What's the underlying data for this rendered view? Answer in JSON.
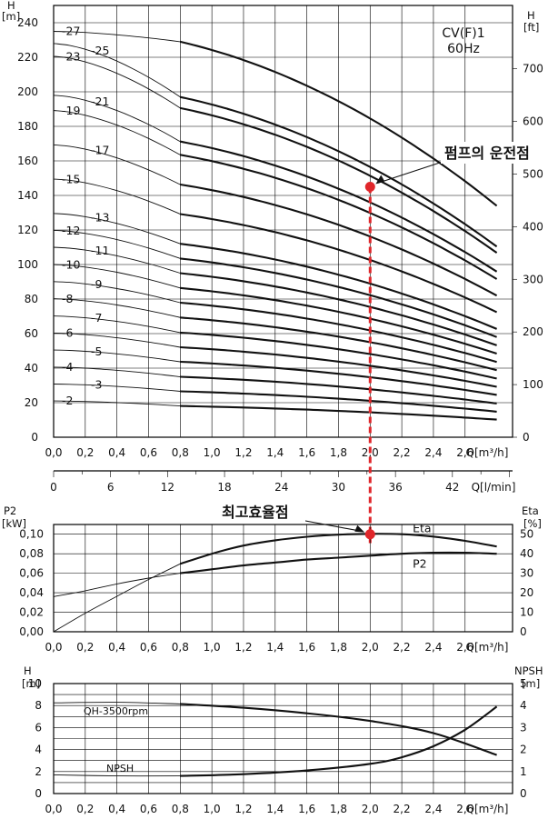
{
  "chart_data": [
    {
      "type": "line",
      "name": "head-curves",
      "title": "CV(F)1",
      "subtitle": "60Hz",
      "xlabel": "Q[m³/h]",
      "x2label": "Q[l/min]",
      "ylabel_left": "H",
      "ylabel_left_unit": "[m]",
      "ylabel_right": "H",
      "ylabel_right_unit": "[ft]",
      "xlim": [
        0,
        2.9
      ],
      "ylim": [
        0,
        250
      ],
      "x_ticks": [
        "0,0",
        "0,2",
        "0,4",
        "0,6",
        "0,8",
        "1,0",
        "1,2",
        "1,4",
        "1,6",
        "1,8",
        "2,0",
        "2,2",
        "2,4",
        "2,6"
      ],
      "x2_ticks": [
        "0",
        "6",
        "12",
        "18",
        "24",
        "30",
        "36",
        "42"
      ],
      "y_left_ticks": [
        "0",
        "20",
        "40",
        "60",
        "80",
        "100",
        "120",
        "140",
        "160",
        "180",
        "200",
        "220",
        "240"
      ],
      "y_right_ticks": [
        "0",
        "100",
        "200",
        "300",
        "400",
        "500",
        "600",
        "700"
      ],
      "series": [
        {
          "name": "-2",
          "values": [
            {
              "x": 0,
              "y": 21.0
            },
            {
              "x": 0.8,
              "y": 18.1
            },
            {
              "x": 2.8,
              "y": 10.2
            }
          ]
        },
        {
          "name": "-3",
          "values": [
            {
              "x": 0,
              "y": 30.8
            },
            {
              "x": 0.8,
              "y": 26.6
            },
            {
              "x": 2.8,
              "y": 14.8
            }
          ]
        },
        {
          "name": "-4",
          "values": [
            {
              "x": 0,
              "y": 40.6
            },
            {
              "x": 0.8,
              "y": 35.0
            },
            {
              "x": 2.8,
              "y": 19.5
            }
          ]
        },
        {
          "name": "-5",
          "values": [
            {
              "x": 0,
              "y": 50.5
            },
            {
              "x": 0.8,
              "y": 43.7
            },
            {
              "x": 2.8,
              "y": 24.5
            }
          ]
        },
        {
          "name": "-6",
          "values": [
            {
              "x": 0,
              "y": 60.3
            },
            {
              "x": 0.8,
              "y": 52.1
            },
            {
              "x": 2.8,
              "y": 29.2
            }
          ]
        },
        {
          "name": "-7",
          "values": [
            {
              "x": 0,
              "y": 70.2
            },
            {
              "x": 0.8,
              "y": 60.6
            },
            {
              "x": 2.8,
              "y": 34.0
            }
          ]
        },
        {
          "name": "-8",
          "values": [
            {
              "x": 0,
              "y": 80.2
            },
            {
              "x": 0.8,
              "y": 69.3
            },
            {
              "x": 2.8,
              "y": 38.8
            }
          ]
        },
        {
          "name": "-9",
          "values": [
            {
              "x": 0,
              "y": 90.1
            },
            {
              "x": 0.8,
              "y": 77.9
            },
            {
              "x": 2.8,
              "y": 43.6
            }
          ]
        },
        {
          "name": "-10",
          "values": [
            {
              "x": 0,
              "y": 100.0
            },
            {
              "x": 0.8,
              "y": 86.4
            },
            {
              "x": 2.8,
              "y": 48.4
            }
          ]
        },
        {
          "name": "-11",
          "values": [
            {
              "x": 0,
              "y": 110.0
            },
            {
              "x": 0.8,
              "y": 95.0
            },
            {
              "x": 2.8,
              "y": 53.2
            }
          ]
        },
        {
          "name": "-12",
          "values": [
            {
              "x": 0,
              "y": 119.8
            },
            {
              "x": 0.8,
              "y": 103.5
            },
            {
              "x": 2.8,
              "y": 58.0
            }
          ]
        },
        {
          "name": "-13",
          "values": [
            {
              "x": 0,
              "y": 129.6
            },
            {
              "x": 0.8,
              "y": 112.0
            },
            {
              "x": 2.8,
              "y": 62.7
            }
          ]
        },
        {
          "name": "-15",
          "values": [
            {
              "x": 0,
              "y": 149.5
            },
            {
              "x": 0.8,
              "y": 129.2
            },
            {
              "x": 2.8,
              "y": 72.4
            }
          ]
        },
        {
          "name": "-17",
          "values": [
            {
              "x": 0,
              "y": 169.3
            },
            {
              "x": 0.8,
              "y": 146.3
            },
            {
              "x": 2.8,
              "y": 82.0
            }
          ]
        },
        {
          "name": "-19",
          "values": [
            {
              "x": 0,
              "y": 189.2
            },
            {
              "x": 0.8,
              "y": 163.5
            },
            {
              "x": 2.8,
              "y": 91.6
            }
          ]
        },
        {
          "name": "-21",
          "values": [
            {
              "x": 0,
              "y": 198.0
            },
            {
              "x": 0.8,
              "y": 171.2
            },
            {
              "x": 2.8,
              "y": 95.9
            }
          ]
        },
        {
          "name": "-23",
          "values": [
            {
              "x": 0,
              "y": 220.6
            },
            {
              "x": 0.8,
              "y": 190.6
            },
            {
              "x": 2.8,
              "y": 106.8
            }
          ]
        },
        {
          "name": "-25",
          "values": [
            {
              "x": 0,
              "y": 228.0
            },
            {
              "x": 0.8,
              "y": 197.0
            },
            {
              "x": 2.8,
              "y": 110.4
            }
          ]
        },
        {
          "name": "-27",
          "values": [
            {
              "x": 0,
              "y": 235.0
            },
            {
              "x": 0.8,
              "y": 229.0
            },
            {
              "x": 2.8,
              "y": 134.0
            }
          ]
        }
      ],
      "annotations": [
        {
          "text": "펌프의 운전점",
          "x": 2.0,
          "y": 145,
          "color": "#e0262a"
        }
      ]
    },
    {
      "type": "line",
      "name": "power-efficiency",
      "xlabel": "Q[m³/h]",
      "ylabel_left": "P2",
      "ylabel_left_unit": "[kW]",
      "ylabel_right": "Eta",
      "ylabel_right_unit": "[%]",
      "xlim": [
        0,
        2.9
      ],
      "ylim": [
        0,
        0.11
      ],
      "y2lim": [
        0,
        55
      ],
      "x_ticks": [
        "0,0",
        "0,2",
        "0,4",
        "0,6",
        "0,8",
        "1,0",
        "1,2",
        "1,4",
        "1,6",
        "1,8",
        "2,0",
        "2,2",
        "2,4",
        "2,6"
      ],
      "y_left_ticks": [
        "0,00",
        "0,02",
        "0,04",
        "0,06",
        "0,08",
        "0,10"
      ],
      "y_right_ticks": [
        "0",
        "10",
        "20",
        "30",
        "40",
        "50"
      ],
      "series": [
        {
          "name": "Eta",
          "axis": "right",
          "values": [
            {
              "x": 0,
              "y": 0
            },
            {
              "x": 0.2,
              "y": 9.5
            },
            {
              "x": 0.4,
              "y": 18.2
            },
            {
              "x": 0.6,
              "y": 26.8
            },
            {
              "x": 0.8,
              "y": 34.8
            },
            {
              "x": 1.0,
              "y": 40.0
            },
            {
              "x": 1.2,
              "y": 44.2
            },
            {
              "x": 1.4,
              "y": 46.9
            },
            {
              "x": 1.6,
              "y": 48.7
            },
            {
              "x": 1.8,
              "y": 49.8
            },
            {
              "x": 2.0,
              "y": 50.2
            },
            {
              "x": 2.2,
              "y": 50.0
            },
            {
              "x": 2.4,
              "y": 48.8
            },
            {
              "x": 2.6,
              "y": 46.6
            },
            {
              "x": 2.8,
              "y": 43.7
            }
          ]
        },
        {
          "name": "P2",
          "axis": "left",
          "values": [
            {
              "x": 0,
              "y": 0.036
            },
            {
              "x": 0.2,
              "y": 0.042
            },
            {
              "x": 0.4,
              "y": 0.049
            },
            {
              "x": 0.6,
              "y": 0.055
            },
            {
              "x": 0.8,
              "y": 0.06
            },
            {
              "x": 1.0,
              "y": 0.064
            },
            {
              "x": 1.2,
              "y": 0.068
            },
            {
              "x": 1.4,
              "y": 0.071
            },
            {
              "x": 1.6,
              "y": 0.074
            },
            {
              "x": 1.8,
              "y": 0.076
            },
            {
              "x": 2.0,
              "y": 0.078
            },
            {
              "x": 2.2,
              "y": 0.08
            },
            {
              "x": 2.4,
              "y": 0.081
            },
            {
              "x": 2.6,
              "y": 0.081
            },
            {
              "x": 2.8,
              "y": 0.08
            }
          ]
        }
      ],
      "annotations": [
        {
          "text": "최고효율점",
          "x": 2.0,
          "y": 0.1,
          "color": "#e0262a"
        }
      ]
    },
    {
      "type": "line",
      "name": "qh-npsh",
      "xlabel": "Q[m³/h]",
      "ylabel_left": "H",
      "ylabel_left_unit": "[m]",
      "ylabel_right": "NPSH",
      "ylabel_right_unit": "[m]",
      "xlim": [
        0,
        2.9
      ],
      "ylim": [
        0,
        10
      ],
      "y2lim": [
        0,
        5
      ],
      "x_ticks": [
        "0,0",
        "0,2",
        "0,4",
        "0,6",
        "0,8",
        "1,0",
        "1,2",
        "1,4",
        "1,6",
        "1,8",
        "2,0",
        "2,2",
        "2,4",
        "2,6"
      ],
      "y_left_ticks": [
        "0",
        "2",
        "4",
        "6",
        "8",
        "10"
      ],
      "y_right_ticks": [
        "0",
        "1",
        "2",
        "3",
        "4",
        "5"
      ],
      "series": [
        {
          "name": "QH-3500rpm",
          "axis": "left",
          "values": [
            {
              "x": 0,
              "y": 8.25
            },
            {
              "x": 0.4,
              "y": 8.3
            },
            {
              "x": 0.8,
              "y": 8.15
            },
            {
              "x": 1.2,
              "y": 7.8
            },
            {
              "x": 1.6,
              "y": 7.3
            },
            {
              "x": 2.0,
              "y": 6.6
            },
            {
              "x": 2.4,
              "y": 5.5
            },
            {
              "x": 2.8,
              "y": 3.5
            }
          ]
        },
        {
          "name": "NPSH",
          "axis": "right",
          "values": [
            {
              "x": 0,
              "y": 0.85
            },
            {
              "x": 0.4,
              "y": 0.8
            },
            {
              "x": 0.8,
              "y": 0.8
            },
            {
              "x": 1.2,
              "y": 0.88
            },
            {
              "x": 1.6,
              "y": 1.05
            },
            {
              "x": 2.0,
              "y": 1.35
            },
            {
              "x": 2.2,
              "y": 1.65
            },
            {
              "x": 2.4,
              "y": 2.15
            },
            {
              "x": 2.6,
              "y": 2.9
            },
            {
              "x": 2.8,
              "y": 3.95
            }
          ]
        }
      ]
    }
  ]
}
